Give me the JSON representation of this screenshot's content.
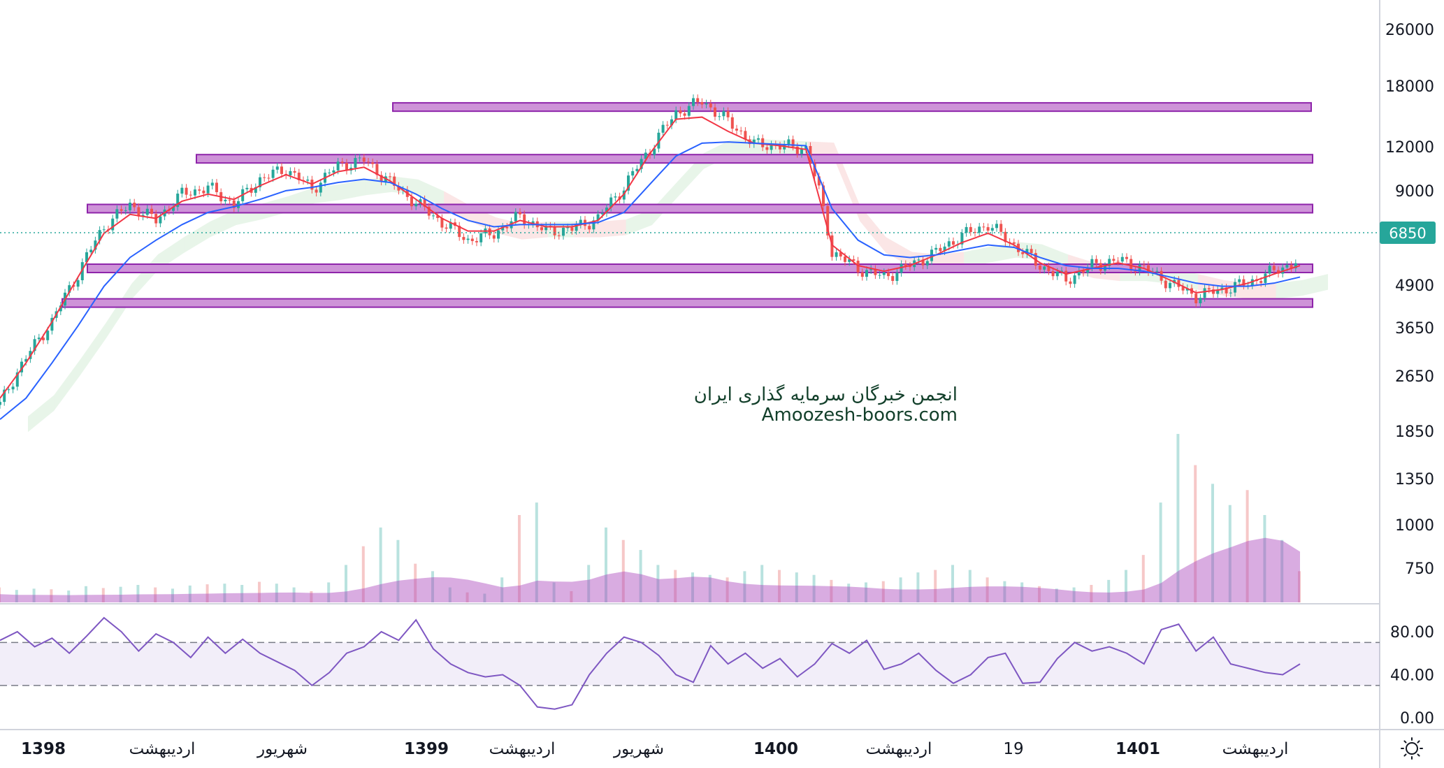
{
  "chart_data": [
    {
      "type": "line",
      "title": "",
      "price_scale": {
        "type": "log",
        "ticks": [
          26000,
          18000,
          12000,
          9000,
          6850,
          4900,
          3650,
          2650,
          1850,
          1350,
          1000,
          750
        ],
        "last_price": 6850
      },
      "series": [
        {
          "kind": "candles",
          "color_up": "#26a69a",
          "color_down": "#ef5350",
          "x": [
            0,
            2,
            4,
            6,
            8,
            10,
            12,
            14,
            16,
            18,
            20,
            22,
            24,
            26,
            28,
            30,
            32,
            34,
            36,
            38,
            40,
            42,
            44,
            46,
            48,
            50,
            52,
            54,
            56,
            58,
            60,
            62,
            64,
            66,
            68,
            70,
            72,
            74,
            76,
            78,
            80,
            82,
            84,
            86,
            88,
            90,
            92,
            94,
            96,
            98,
            100
          ],
          "values": [
            2200,
            3000,
            3800,
            5200,
            7100,
            8200,
            7400,
            8800,
            9200,
            8200,
            9700,
            10400,
            9100,
            10600,
            11000,
            9500,
            8300,
            7300,
            6500,
            6800,
            7600,
            6900,
            7000,
            7500,
            9200,
            11800,
            15000,
            16200,
            14200,
            12200,
            12100,
            11900,
            6000,
            5400,
            5100,
            5500,
            6000,
            6700,
            7200,
            6300,
            5500,
            5000,
            5500,
            5700,
            5400,
            4900,
            4500,
            4700,
            4900,
            5300,
            5700
          ]
        },
        {
          "name": "",
          "kind": "ma-fast",
          "color": "#f23645",
          "values": [
            2300,
            2900,
            3800,
            5100,
            6800,
            7700,
            7500,
            8400,
            8800,
            8500,
            9300,
            10000,
            9400,
            10200,
            10500,
            9600,
            8500,
            7500,
            6900,
            6900,
            7400,
            7100,
            7100,
            7400,
            8800,
            11500,
            14400,
            14600,
            13300,
            12300,
            12100,
            11800,
            6300,
            5500,
            5300,
            5500,
            5900,
            6400,
            6800,
            6300,
            5600,
            5200,
            5400,
            5600,
            5400,
            5000,
            4600,
            4700,
            4900,
            5200,
            5500
          ]
        },
        {
          "name": "",
          "kind": "ma-slow",
          "color": "#2962ff",
          "values": [
            2000,
            2300,
            2900,
            3700,
            4800,
            5800,
            6500,
            7200,
            7800,
            8100,
            8500,
            9000,
            9200,
            9500,
            9700,
            9500,
            8800,
            8000,
            7400,
            7100,
            7200,
            7200,
            7200,
            7300,
            7800,
            9400,
            11300,
            12300,
            12400,
            12300,
            12200,
            12100,
            8000,
            6500,
            5900,
            5800,
            5900,
            6100,
            6300,
            6200,
            5800,
            5500,
            5400,
            5400,
            5300,
            5100,
            4900,
            4800,
            4800,
            4900,
            5100
          ]
        },
        {
          "name": "",
          "kind": "ichimoku-cloud",
          "color_up": "#a5d6a7",
          "color_down": "#ef9a9a"
        }
      ],
      "support_resistance_zones": [
        15600,
        11100,
        8000,
        5400,
        4300
      ],
      "x_ticks": [
        "1398",
        "اردیبهشت",
        "شهریور",
        "1399",
        "اردیبهشت",
        "شهریور",
        "1400",
        "اردیبهشت",
        "19",
        "1401",
        "اردیبهشت"
      ],
      "grid": false
    },
    {
      "type": "bar",
      "title": "",
      "series": [
        {
          "kind": "volume",
          "color": "#ce93d8",
          "values": [
            120,
            100,
            110,
            105,
            95,
            130,
            115,
            125,
            140,
            120,
            110,
            135,
            145,
            150,
            140,
            165,
            150,
            120,
            90,
            160,
            300,
            450,
            600,
            500,
            310,
            250,
            120,
            80,
            70,
            200,
            700,
            800,
            160,
            90,
            300,
            600,
            500,
            420,
            300,
            260,
            240,
            220,
            200,
            250,
            300,
            260,
            240,
            220,
            180,
            150,
            160,
            170,
            200,
            240,
            260,
            300,
            260,
            200,
            170,
            160,
            130,
            110,
            120,
            140,
            180,
            260,
            380,
            800,
            1350,
            1100,
            950,
            780,
            900,
            700,
            500,
            250
          ]
        },
        {
          "kind": "volume-ma",
          "color": "#ab47bc"
        }
      ]
    },
    {
      "type": "line",
      "title": "",
      "yticks": [
        "80.00",
        "40.00",
        "0.00"
      ],
      "ylim": [
        0,
        100
      ],
      "bands": [
        30,
        70
      ],
      "series": [
        {
          "name": "",
          "kind": "rsi",
          "color": "#7e57c2",
          "values": [
            72,
            80,
            66,
            74,
            60,
            76,
            93,
            80,
            62,
            78,
            70,
            56,
            75,
            60,
            73,
            60,
            52,
            44,
            30,
            42,
            60,
            66,
            80,
            72,
            91,
            64,
            50,
            42,
            38,
            40,
            30,
            10,
            8,
            12,
            40,
            60,
            75,
            70,
            58,
            40,
            33,
            67,
            50,
            60,
            46,
            55,
            38,
            50,
            69,
            60,
            72,
            45,
            50,
            60,
            44,
            32,
            40,
            56,
            60,
            32,
            33,
            55,
            70,
            62,
            66,
            60,
            50,
            82,
            87,
            62,
            75,
            50,
            46,
            42,
            40,
            50
          ]
        }
      ]
    }
  ],
  "watermark": {
    "line1": "انجمن خبرگان سرمایه گذاری ایران",
    "line2": "Amoozesh-boors.com"
  },
  "icons": {
    "settings": "sun-icon"
  },
  "colors": {
    "zone_fill": "#ce93d8",
    "zone_border": "#8e24aa",
    "last_price_badge": "#26a69a"
  }
}
